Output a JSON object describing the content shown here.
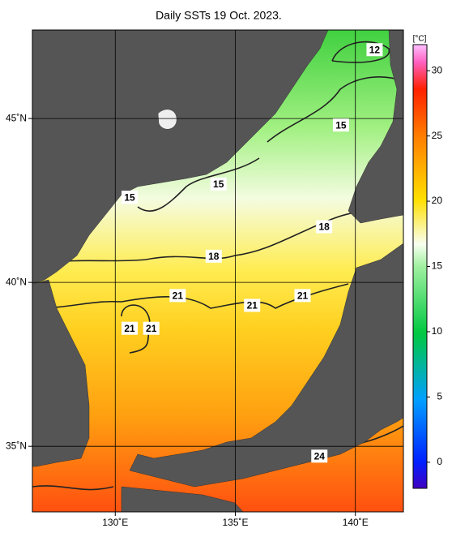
{
  "chart_data": {
    "type": "map",
    "title": "Daily SSTs 19 Oct. 2023.",
    "xlim": [
      126.55,
      142.0
    ],
    "ylim": [
      33.0,
      47.7
    ],
    "xticks": [
      {
        "value": 130,
        "label": "130˚E"
      },
      {
        "value": 135,
        "label": "135˚E"
      },
      {
        "value": 140,
        "label": "140˚E"
      }
    ],
    "yticks": [
      {
        "value": 35,
        "label": "35˚N"
      },
      {
        "value": 40,
        "label": "40˚N"
      },
      {
        "value": 45,
        "label": "45˚N"
      }
    ],
    "grid": true,
    "colorbar": {
      "label": "[°C]",
      "lim": [
        -2,
        32
      ],
      "ticks": [
        0,
        5,
        10,
        15,
        20,
        25,
        30
      ]
    },
    "contour_labels": [
      {
        "value": 12,
        "lon": 140.8,
        "lat": 47.1
      },
      {
        "value": 15,
        "lon": 139.4,
        "lat": 44.8
      },
      {
        "value": 15,
        "lon": 134.3,
        "lat": 43.0
      },
      {
        "value": 15,
        "lon": 130.6,
        "lat": 42.6
      },
      {
        "value": 18,
        "lon": 138.7,
        "lat": 41.7
      },
      {
        "value": 18,
        "lon": 134.1,
        "lat": 40.8
      },
      {
        "value": 21,
        "lon": 132.6,
        "lat": 39.6
      },
      {
        "value": 21,
        "lon": 135.7,
        "lat": 39.3
      },
      {
        "value": 21,
        "lon": 137.8,
        "lat": 39.6
      },
      {
        "value": 21,
        "lon": 130.6,
        "lat": 38.6
      },
      {
        "value": 21,
        "lon": 131.5,
        "lat": 38.6
      },
      {
        "value": 24,
        "lon": 138.5,
        "lat": 34.7
      }
    ]
  }
}
